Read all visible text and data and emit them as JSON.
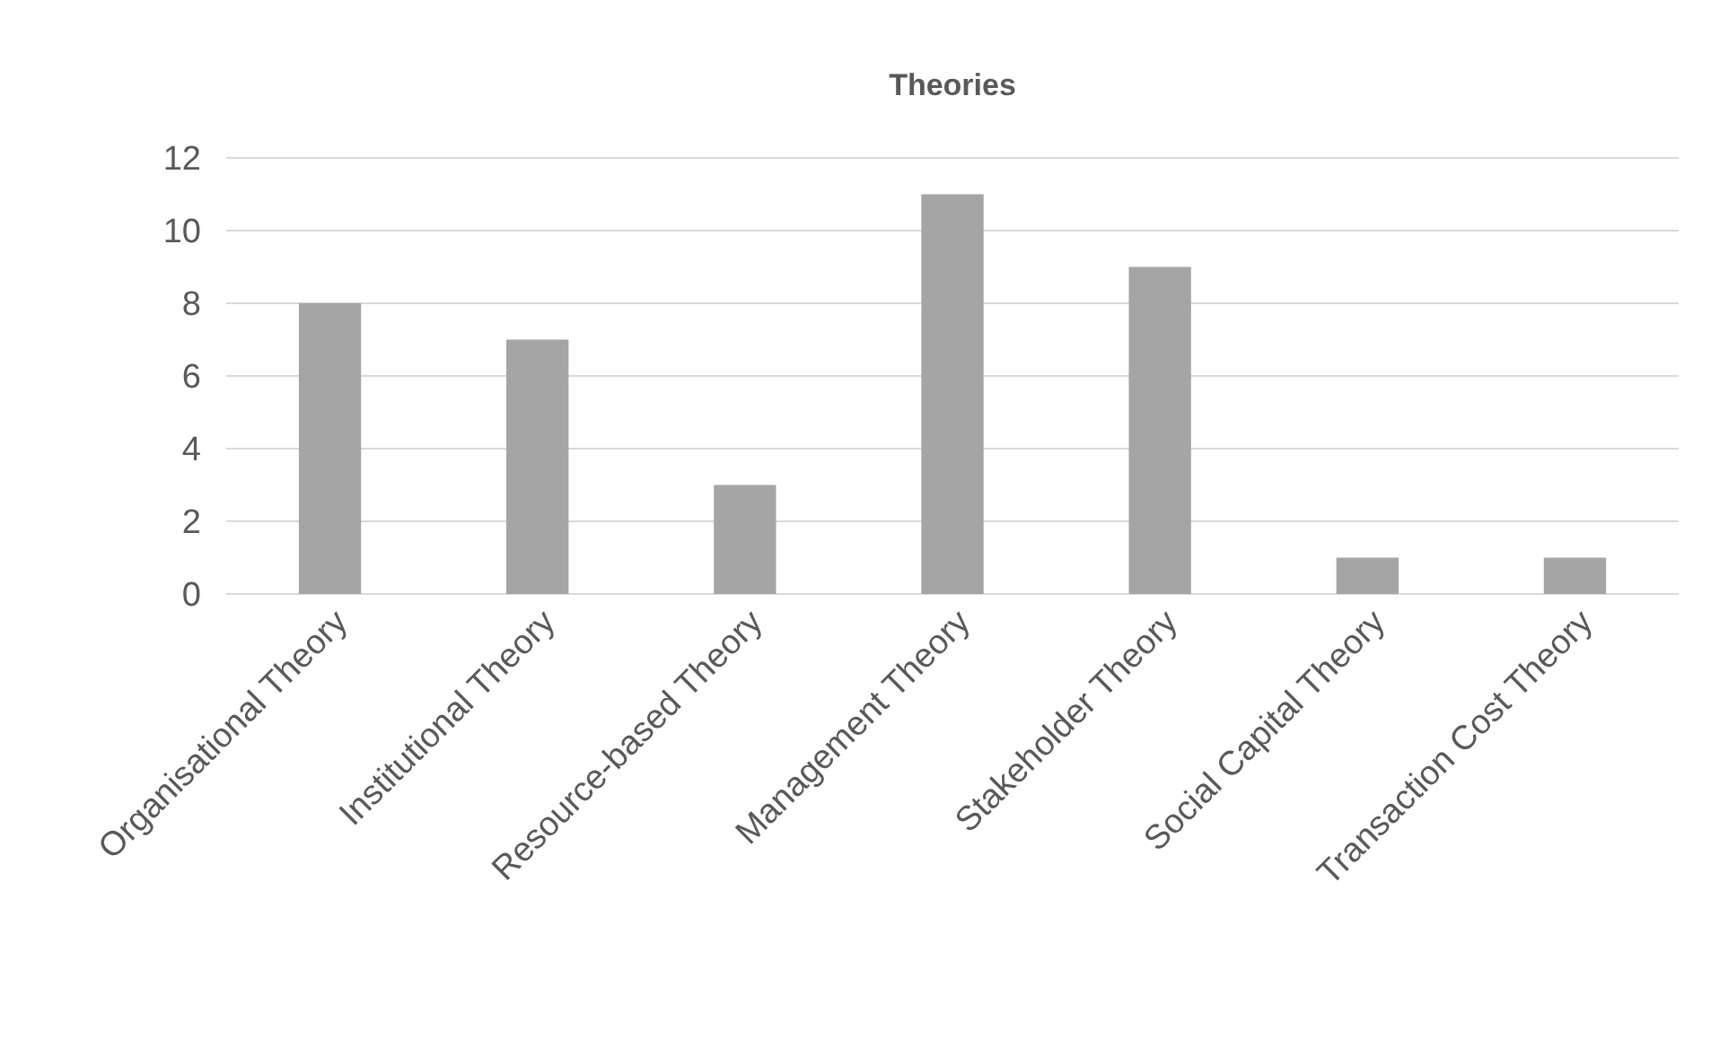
{
  "chart_data": {
    "type": "bar",
    "title": "Theories",
    "categories": [
      "Organisational Theory",
      "Institutional Theory",
      "Resource-based Theory",
      "Management Theory",
      "Stakeholder Theory",
      "Social Capital Theory",
      "Transaction Cost Theory"
    ],
    "values": [
      8,
      7,
      3,
      11,
      9,
      1,
      1
    ],
    "color": "#a5a5a5",
    "ylim": [
      0,
      12
    ],
    "yticks": [
      0,
      2,
      4,
      6,
      8,
      10,
      12
    ],
    "grid": "y"
  }
}
